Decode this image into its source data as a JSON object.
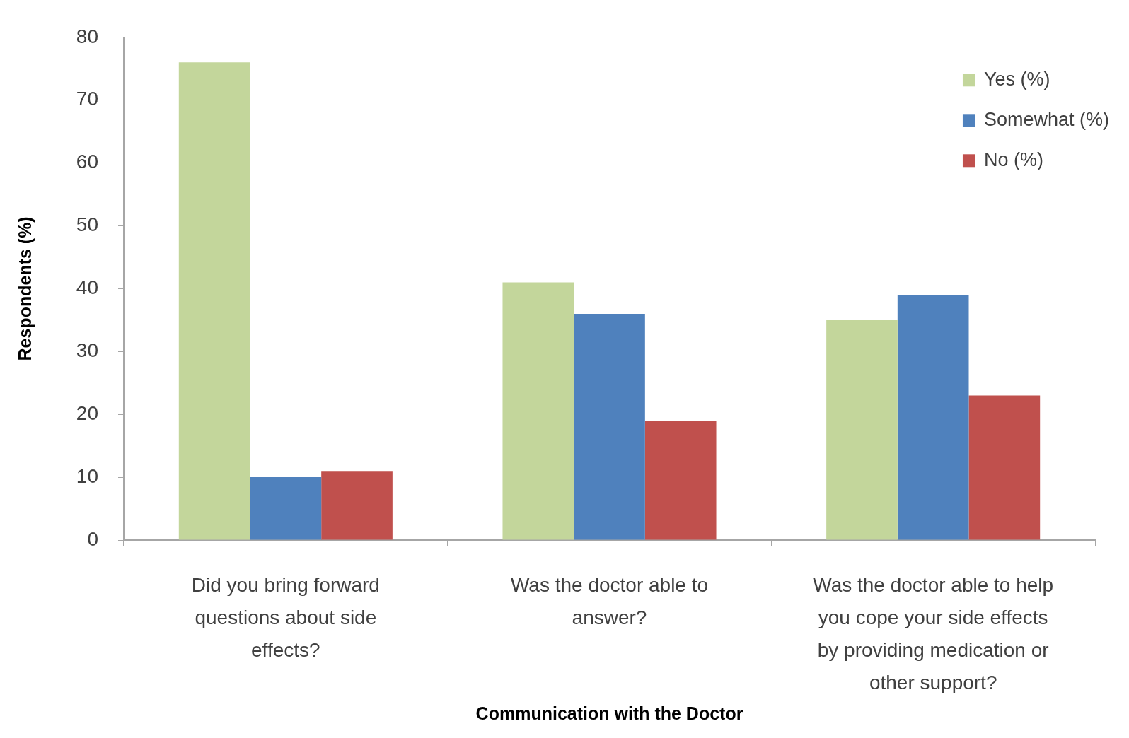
{
  "chart_data": {
    "type": "bar",
    "xlabel": "Communication with the Doctor",
    "ylabel": "Respondents (%)",
    "categories": [
      "Did you bring forward questions about side effects?",
      "Was the doctor able to answer?",
      "Was the doctor able to help you cope your side effects by providing medication or other support?"
    ],
    "series": [
      {
        "name": "Yes (%)",
        "color": "#c3d69b",
        "values": [
          76,
          41,
          35
        ]
      },
      {
        "name": "Somewhat (%)",
        "color": "#4f81bd",
        "values": [
          10,
          36,
          39
        ]
      },
      {
        "name": "No (%)",
        "color": "#c0504d",
        "values": [
          11,
          19,
          23
        ]
      }
    ],
    "ylim": [
      0,
      80
    ],
    "yticks": [
      0,
      10,
      20,
      30,
      40,
      50,
      60,
      70,
      80
    ],
    "legend": "top right"
  }
}
